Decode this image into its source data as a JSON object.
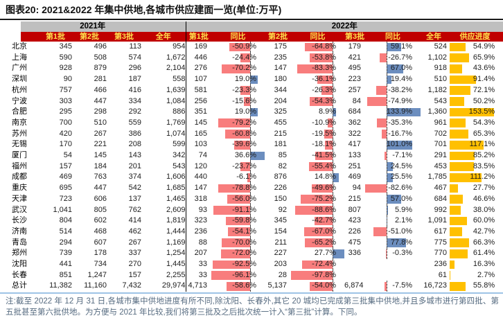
{
  "title": "图表20:  2021&2022 年集中供地,各城市供应建面一览(单位:万平)",
  "note": "注:截至 2022 年 12 月 31 日,各城市集中供地进度有所不同,除沈阳、长春外,其它 20 城均已完成第三批集中供地,并且多城市进行第四批、第五批甚至第六批供地。为方便与 2021 年比较,我们将第三批及之后批次统一计入“第三批”计算。下同。",
  "colors": {
    "header_red": "#C00000",
    "header_text_yellow": "#FFE14D",
    "year_band_gray": "#BFBFBF",
    "bar_negative_red": "#F87D7D",
    "bar_positive_blue": "#6C8EBF",
    "bar_progress_orange": "#FFC000",
    "bottom_line_blue": "#9DC3E6",
    "note_text": "#566B80"
  },
  "header": {
    "year_2021": "2021年",
    "year_2022": "2022年",
    "cols_2021": [
      "第1批",
      "第2批",
      "第3批",
      "全年"
    ],
    "cols_2022": [
      "第1批",
      "同比",
      "第2批",
      "同比",
      "第3批",
      "同比",
      "全年",
      "供应进度"
    ]
  },
  "rows": [
    {
      "city": "北京",
      "y2021": [
        "345",
        "496",
        "113",
        "954"
      ],
      "y2022": {
        "b1": "169",
        "t1": "-50.9%",
        "b2": "175",
        "t2": "-64.8%",
        "b3": "179",
        "t3": "59.1%",
        "full": "524",
        "progress": "54.9%"
      }
    },
    {
      "city": "上海",
      "y2021": [
        "590",
        "508",
        "574",
        "1,672"
      ],
      "y2022": {
        "b1": "446",
        "t1": "-24.4%",
        "b2": "235",
        "t2": "-53.8%",
        "b3": "421",
        "t3": "-26.7%",
        "full": "1,102",
        "progress": "65.9%"
      }
    },
    {
      "city": "广州",
      "y2021": [
        "928",
        "879",
        "296",
        "2,104"
      ],
      "y2022": {
        "b1": "276",
        "t1": "-70.2%",
        "b2": "147",
        "t2": "-83.3%",
        "b3": "495",
        "t3": "67.0%",
        "full": "918",
        "progress": "43.6%"
      }
    },
    {
      "city": "深圳",
      "y2021": [
        "90",
        "281",
        "187",
        "558"
      ],
      "y2022": {
        "b1": "107",
        "t1": "19.0%",
        "b2": "180",
        "t2": "-36.1%",
        "b3": "223",
        "t3": "19.4%",
        "full": "510",
        "progress": "91.4%"
      }
    },
    {
      "city": "杭州",
      "y2021": [
        "757",
        "466",
        "416",
        "1,639"
      ],
      "y2022": {
        "b1": "581",
        "t1": "-23.3%",
        "b2": "344",
        "t2": "-26.3%",
        "b3": "257",
        "t3": "-38.2%",
        "full": "1,182",
        "progress": "72.1%"
      }
    },
    {
      "city": "宁波",
      "y2021": [
        "303",
        "447",
        "334",
        "1,084"
      ],
      "y2022": {
        "b1": "256",
        "t1": "-15.6%",
        "b2": "204",
        "t2": "-54.3%",
        "b3": "84",
        "t3": "-74.9%",
        "full": "543",
        "progress": "50.2%"
      }
    },
    {
      "city": "合肥",
      "y2021": [
        "295",
        "298",
        "292",
        "886"
      ],
      "y2022": {
        "b1": "351",
        "t1": "19.0%",
        "b2": "325",
        "t2": "8.9%",
        "b3": "684",
        "t3": "133.9%",
        "full": "1,360",
        "progress": "153.5%"
      }
    },
    {
      "city": "南京",
      "y2021": [
        "700",
        "510",
        "559",
        "1,769"
      ],
      "y2022": {
        "b1": "145",
        "t1": "-79.2%",
        "b2": "455",
        "t2": "-10.9%",
        "b3": "362",
        "t3": "-35.3%",
        "full": "961",
        "progress": "54.3%"
      }
    },
    {
      "city": "苏州",
      "y2021": [
        "420",
        "267",
        "386",
        "1,074"
      ],
      "y2022": {
        "b1": "165",
        "t1": "-60.8%",
        "b2": "215",
        "t2": "-19.5%",
        "b3": "322",
        "t3": "-16.7%",
        "full": "702",
        "progress": "65.3%"
      }
    },
    {
      "city": "无锡",
      "y2021": [
        "170",
        "221",
        "208",
        "599"
      ],
      "y2022": {
        "b1": "103",
        "t1": "-39.6%",
        "b2": "181",
        "t2": "-18.1%",
        "b3": "417",
        "t3": "101.0%",
        "full": "701",
        "progress": "117.1%"
      }
    },
    {
      "city": "厦门",
      "y2021": [
        "54",
        "145",
        "143",
        "342"
      ],
      "y2022": {
        "b1": "74",
        "t1": "36.6%",
        "b2": "85",
        "t2": "-41.5%",
        "b3": "133",
        "t3": "-7.1%",
        "full": "291",
        "progress": "85.2%"
      }
    },
    {
      "city": "福州",
      "y2021": [
        "157",
        "184",
        "201",
        "543"
      ],
      "y2022": {
        "b1": "120",
        "t1": "-23.7%",
        "b2": "82",
        "t2": "-55.4%",
        "b3": "251",
        "t3": "24.5%",
        "full": "453",
        "progress": "83.5%"
      }
    },
    {
      "city": "成都",
      "y2021": [
        "469",
        "763",
        "374",
        "1,606"
      ],
      "y2022": {
        "b1": "440",
        "t1": "-6.1%",
        "b2": "876",
        "t2": "14.8%",
        "b3": "469",
        "t3": "25.5%",
        "full": "1,785",
        "progress": "111.2%"
      }
    },
    {
      "city": "重庆",
      "y2021": [
        "695",
        "447",
        "542",
        "1,685"
      ],
      "y2022": {
        "b1": "147",
        "t1": "-78.8%",
        "b2": "226",
        "t2": "-49.6%",
        "b3": "94",
        "t3": "-82.6%",
        "full": "467",
        "progress": "27.7%"
      }
    },
    {
      "city": "天津",
      "y2021": [
        "723",
        "606",
        "137",
        "1,465"
      ],
      "y2022": {
        "b1": "318",
        "t1": "-56.0%",
        "b2": "150",
        "t2": "-75.2%",
        "b3": "215",
        "t3": "57.0%",
        "full": "684",
        "progress": "46.6%"
      }
    },
    {
      "city": "武汉",
      "y2021": [
        "1,041",
        "805",
        "762",
        "2,609"
      ],
      "y2022": {
        "b1": "93",
        "t1": "-91.1%",
        "b2": "92",
        "t2": "-88.6%",
        "b3": "807",
        "t3": "5.9%",
        "full": "992",
        "progress": "38.0%"
      }
    },
    {
      "city": "长沙",
      "y2021": [
        "804",
        "602",
        "414",
        "1,819"
      ],
      "y2022": {
        "b1": "323",
        "t1": "-59.8%",
        "b2": "345",
        "t2": "-42.7%",
        "b3": "423",
        "t3": "2.1%",
        "full": "1,091",
        "progress": "60.0%"
      }
    },
    {
      "city": "济南",
      "y2021": [
        "514",
        "468",
        "462",
        "1,444"
      ],
      "y2022": {
        "b1": "236",
        "t1": "-54.1%",
        "b2": "154",
        "t2": "-67.0%",
        "b3": "226",
        "t3": "-51.0%",
        "full": "617",
        "progress": "42.7%"
      }
    },
    {
      "city": "青岛",
      "y2021": [
        "294",
        "607",
        "267",
        "1,169"
      ],
      "y2022": {
        "b1": "88",
        "t1": "-70.0%",
        "b2": "211",
        "t2": "-65.2%",
        "b3": "475",
        "t3": "77.8%",
        "full": "775",
        "progress": "66.3%"
      }
    },
    {
      "city": "郑州",
      "y2021": [
        "739",
        "178",
        "337",
        "1,254"
      ],
      "y2022": {
        "b1": "207",
        "t1": "-72.0%",
        "b2": "227",
        "t2": "27.7%",
        "b3": "336",
        "t3": "-0.3%",
        "full": "770",
        "progress": "61.4%"
      }
    },
    {
      "city": "沈阳",
      "y2021": [
        "441",
        "734",
        "270",
        "1,445"
      ],
      "y2022": {
        "b1": "33",
        "t1": "-92.5%",
        "b2": "203",
        "t2": "-72.4%",
        "b3": null,
        "t3": null,
        "full": "236",
        "progress": "16.3%"
      }
    },
    {
      "city": "长春",
      "y2021": [
        "851",
        "1,247",
        "157",
        "2,255"
      ],
      "y2022": {
        "b1": "33",
        "t1": "-96.1%",
        "b2": "28",
        "t2": "-97.8%",
        "b3": null,
        "t3": null,
        "full": "61",
        "progress": "2.7%"
      }
    },
    {
      "city": "总计",
      "y2021": [
        "11,382",
        "11,160",
        "7,432",
        "29,974"
      ],
      "y2022": {
        "b1": "4,713",
        "t1": "-58.6%",
        "b2": "5,137",
        "t2": "-54.0%",
        "b3": "6,874",
        "t3": "-7.5%",
        "full": "16,723",
        "progress": "55.8%"
      }
    }
  ]
}
